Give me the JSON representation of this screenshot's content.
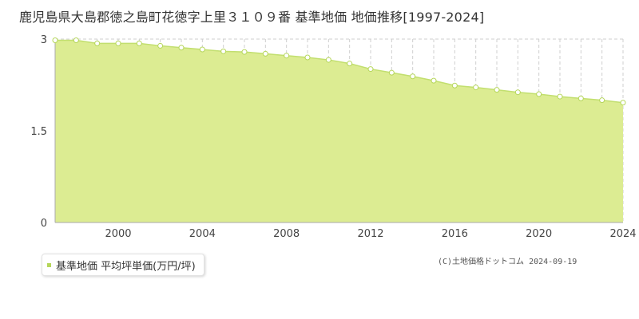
{
  "header": {
    "title": "鹿児島県大島郡徳之島町花徳字上里３１０９番 基準地価 地価推移[1997-2024]"
  },
  "legend": {
    "label": "基準地価 平均坪単価(万円/坪)"
  },
  "footer": {
    "copyright": "(C)土地価格ドットコム 2024-09-19"
  },
  "colors": {
    "area_fill": "#dcec92",
    "line": "#c2df6f",
    "point_fill": "#ffffff",
    "point_stroke": "#b5d65a",
    "grid": "#cfcfcf",
    "axis": "#aaaaaa",
    "legend_marker": "#b5d65a"
  },
  "chart_data": {
    "type": "area",
    "title": "鹿児島県大島郡徳之島町花徳字上里３１０９番 基準地価 地価推移[1997-2024]",
    "xlabel": "",
    "ylabel": "",
    "x": [
      1997,
      1998,
      1999,
      2000,
      2001,
      2002,
      2003,
      2004,
      2005,
      2006,
      2007,
      2008,
      2009,
      2010,
      2011,
      2012,
      2013,
      2014,
      2015,
      2016,
      2017,
      2018,
      2019,
      2020,
      2021,
      2022,
      2023,
      2024
    ],
    "series": [
      {
        "name": "基準地価 平均坪単価(万円/坪)",
        "values": [
          2.98,
          2.98,
          2.93,
          2.93,
          2.93,
          2.89,
          2.86,
          2.83,
          2.8,
          2.79,
          2.76,
          2.73,
          2.7,
          2.66,
          2.6,
          2.51,
          2.45,
          2.39,
          2.32,
          2.24,
          2.21,
          2.17,
          2.13,
          2.1,
          2.06,
          2.03,
          2.0,
          1.96
        ]
      }
    ],
    "xlim": [
      1997,
      2024
    ],
    "ylim": [
      0,
      3
    ],
    "x_ticks": [
      "2000",
      "2004",
      "2008",
      "2012",
      "2016",
      "2020",
      "2024"
    ],
    "y_ticks": [
      "0",
      "1.5",
      "3"
    ],
    "grid": true,
    "legend_position": "bottom-left"
  }
}
